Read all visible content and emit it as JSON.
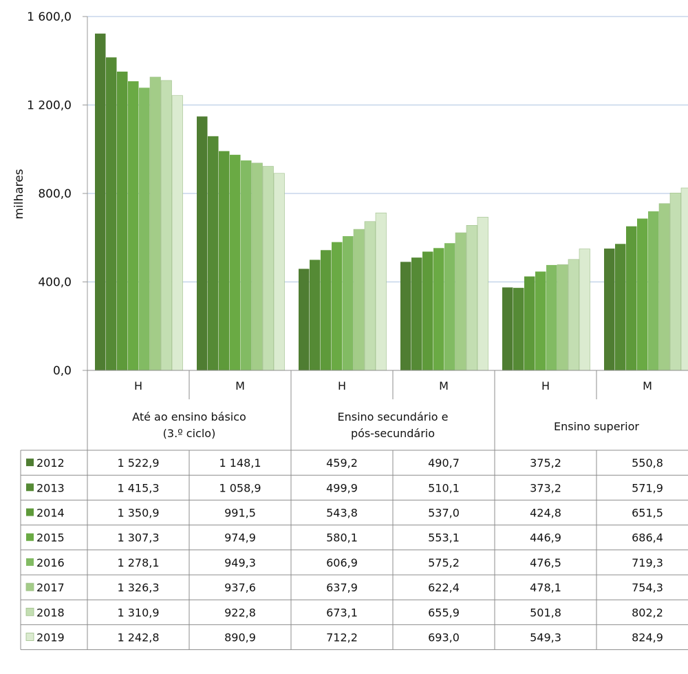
{
  "chart_data": {
    "type": "bar",
    "ylabel": "milhares",
    "ylim": [
      0,
      1600
    ],
    "yticks": [
      0,
      400,
      800,
      1200,
      1600
    ],
    "ytick_labels": [
      "0,0",
      "400,0",
      "800,0",
      "1 200,0",
      "1 600,0"
    ],
    "grid": true,
    "groups": [
      {
        "label": "Até ao ensino básico\n(3.º ciclo)",
        "subcategories": [
          "H",
          "M"
        ]
      },
      {
        "label": "Ensino secundário e\npós-secundário",
        "subcategories": [
          "H",
          "M"
        ]
      },
      {
        "label": "Ensino superior",
        "subcategories": [
          "H",
          "M"
        ]
      }
    ],
    "categories": [
      "H",
      "M",
      "H",
      "M",
      "H",
      "M"
    ],
    "series": [
      {
        "name": "2012",
        "color": "#4f7d32",
        "values": [
          1522.9,
          1148.1,
          459.2,
          490.7,
          375.2,
          550.8
        ],
        "labels": [
          "1 522,9",
          "1 148,1",
          "459,2",
          "490,7",
          "375,2",
          "550,8"
        ]
      },
      {
        "name": "2013",
        "color": "#558a35",
        "values": [
          1415.3,
          1058.9,
          499.9,
          510.1,
          373.2,
          571.9
        ],
        "labels": [
          "1 415,3",
          "1 058,9",
          "499,9",
          "510,1",
          "373,2",
          "571,9"
        ]
      },
      {
        "name": "2014",
        "color": "#5e9a3a",
        "values": [
          1350.9,
          991.5,
          543.8,
          537.0,
          424.8,
          651.5
        ],
        "labels": [
          "1 350,9",
          "991,5",
          "543,8",
          "537,0",
          "424,8",
          "651,5"
        ]
      },
      {
        "name": "2015",
        "color": "#6aaa44",
        "values": [
          1307.3,
          974.9,
          580.1,
          553.1,
          446.9,
          686.4
        ],
        "labels": [
          "1 307,3",
          "974,9",
          "580,1",
          "553,1",
          "446,9",
          "686,4"
        ]
      },
      {
        "name": "2016",
        "color": "#82bb63",
        "values": [
          1278.1,
          949.3,
          606.9,
          575.2,
          476.5,
          719.3
        ],
        "labels": [
          "1 278,1",
          "949,3",
          "606,9",
          "575,2",
          "476,5",
          "719,3"
        ]
      },
      {
        "name": "2017",
        "color": "#a3cc88",
        "values": [
          1326.3,
          937.6,
          637.9,
          622.4,
          478.1,
          754.3
        ],
        "labels": [
          "1 326,3",
          "937,6",
          "637,9",
          "622,4",
          "478,1",
          "754,3"
        ]
      },
      {
        "name": "2018",
        "color": "#c3deb2",
        "values": [
          1310.9,
          922.8,
          673.1,
          655.9,
          501.8,
          802.2
        ],
        "labels": [
          "1 310,9",
          "922,8",
          "673,1",
          "655,9",
          "501,8",
          "802,2"
        ]
      },
      {
        "name": "2019",
        "color": "#dbebd0",
        "values": [
          1242.8,
          890.9,
          712.2,
          693.0,
          549.3,
          824.9
        ],
        "labels": [
          "1 242,8",
          "890,9",
          "712,2",
          "693,0",
          "549,3",
          "824,9"
        ]
      }
    ]
  }
}
